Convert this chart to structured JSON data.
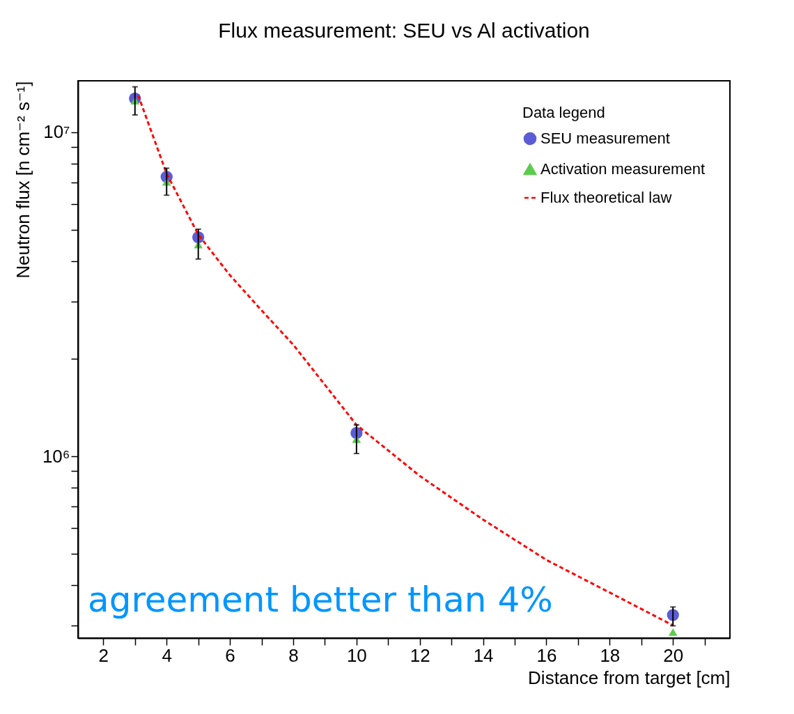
{
  "chart_data": {
    "type": "scatter",
    "title": "Flux measurement: SEU vs Al activation",
    "xlabel": "Distance from target [cm]",
    "ylabel": "Neutron flux [n cm⁻² s⁻¹]",
    "legend_title": "Data legend",
    "legend": "top right",
    "log": "y",
    "x": [
      3,
      4,
      5,
      10,
      20
    ],
    "series": [
      {
        "name": "SEU measurement",
        "color": "#5c5cd6",
        "marker": "circle",
        "values": [
          12700000,
          7280000,
          4740000,
          1180000,
          324000
        ],
        "errors": [
          null,
          null,
          null,
          null,
          [
            300000,
            343000
          ]
        ]
      },
      {
        "name": "Activation measurement",
        "color": "#5ccc4c",
        "marker": "triangle",
        "values": [
          12500000,
          7030000,
          4500000,
          1130000,
          287000
        ],
        "errors": [
          [
            11300000,
            13800000
          ],
          [
            6390000,
            7740000
          ],
          [
            4060000,
            5020000
          ],
          [
            1020000,
            1250000
          ],
          null
        ]
      },
      {
        "name": "Flux theoretical law",
        "type": "line",
        "color": "#ff0000",
        "line_style": "dashed",
        "marker": "none",
        "x": [
          3.1,
          4,
          5,
          6,
          7,
          8,
          10,
          12,
          14,
          16,
          18,
          20
        ],
        "values": [
          13000000,
          7450000,
          4830000,
          3620000,
          2820000,
          2210000,
          1250000,
          870000,
          638000,
          479000,
          380000,
          301000
        ]
      }
    ],
    "xlim": [
      1.2,
      21.8
    ],
    "xticks": [
      2,
      {
        "value": 3,
        "label": null
      },
      4,
      {
        "value": 5,
        "label": null
      },
      6,
      {
        "value": 7,
        "label": null
      },
      8,
      {
        "value": 9,
        "label": null
      },
      10,
      {
        "value": 11,
        "label": null
      },
      12,
      {
        "value": 13,
        "label": null
      },
      14,
      {
        "value": 15,
        "label": null
      },
      16,
      {
        "value": 17,
        "label": null
      },
      18,
      {
        "value": 19,
        "label": null
      },
      20,
      {
        "value": 21,
        "label": null
      }
    ],
    "ylim": [
      275000,
      14400000
    ],
    "yticks": [
      {
        "value": 300000,
        "label": null
      },
      {
        "value": 400000,
        "label": null
      },
      {
        "value": 500000,
        "label": null
      },
      {
        "value": 600000,
        "label": null
      },
      {
        "value": 700000,
        "label": null
      },
      {
        "value": 800000,
        "label": null
      },
      {
        "value": 900000,
        "label": null
      },
      {
        "value": 1000000,
        "label": "10⁶"
      },
      {
        "value": 2000000,
        "label": null
      },
      {
        "value": 3000000,
        "label": null
      },
      {
        "value": 4000000,
        "label": null
      },
      {
        "value": 5000000,
        "label": null
      },
      {
        "value": 6000000,
        "label": null
      },
      {
        "value": 7000000,
        "label": null
      },
      {
        "value": 8000000,
        "label": null
      },
      {
        "value": 9000000,
        "label": null
      },
      {
        "value": 10000000,
        "label": "10⁷"
      }
    ],
    "annotations": [
      "agreement better than 4%"
    ]
  }
}
